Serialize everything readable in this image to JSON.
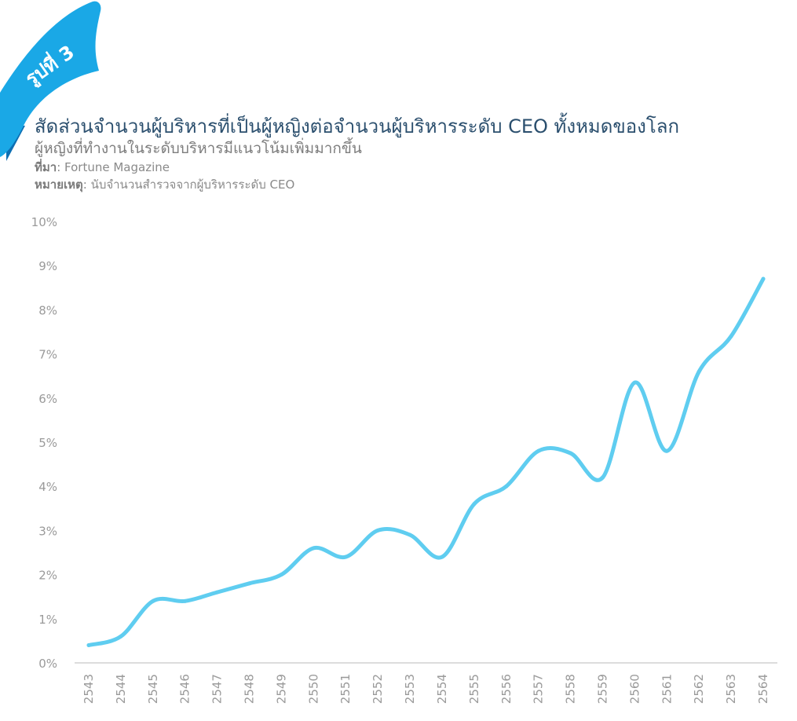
{
  "badge": {
    "label": "รูปที่ 3"
  },
  "header": {
    "title": "สัดส่วนจำนวนผู้บริหารที่เป็นผู้หญิงต่อจำนวนผู้บริหารระดับ CEO ทั้งหมดของโลก",
    "subtitle": "ผู้หญิงที่ทำงานในระดับบริหารมีแนวโน้มเพิ่มมากขึ้น",
    "source_label": "ที่มา",
    "source_value": ": Fortune Magazine",
    "note_label": "หมายเหตุ",
    "note_value": ": นับจำนวนสำรวจจากผู้บริหารระดับ CEO"
  },
  "colors": {
    "line": "#5fcdf0",
    "ribbon_light": "#1aa8e6",
    "ribbon_dark": "#0d6fb3",
    "title": "#2b4f6e",
    "axis_text": "#9a9a9a"
  },
  "chart_data": {
    "type": "line",
    "categories": [
      "2543",
      "2544",
      "2545",
      "2546",
      "2547",
      "2548",
      "2549",
      "2550",
      "2551",
      "2552",
      "2553",
      "2554",
      "2555",
      "2556",
      "2557",
      "2558",
      "2559",
      "2560",
      "2561",
      "2562",
      "2563",
      "2564"
    ],
    "values": [
      0.4,
      0.6,
      1.4,
      1.4,
      1.6,
      1.8,
      2.0,
      2.6,
      2.4,
      3.0,
      2.9,
      2.4,
      3.6,
      4.0,
      4.8,
      4.75,
      4.2,
      6.35,
      4.8,
      6.6,
      7.4,
      8.7
    ],
    "yticks": [
      "0%",
      "1%",
      "2%",
      "3%",
      "4%",
      "5%",
      "6%",
      "7%",
      "8%",
      "9%",
      "10%"
    ],
    "ylim": [
      0,
      10
    ],
    "grid": false
  }
}
